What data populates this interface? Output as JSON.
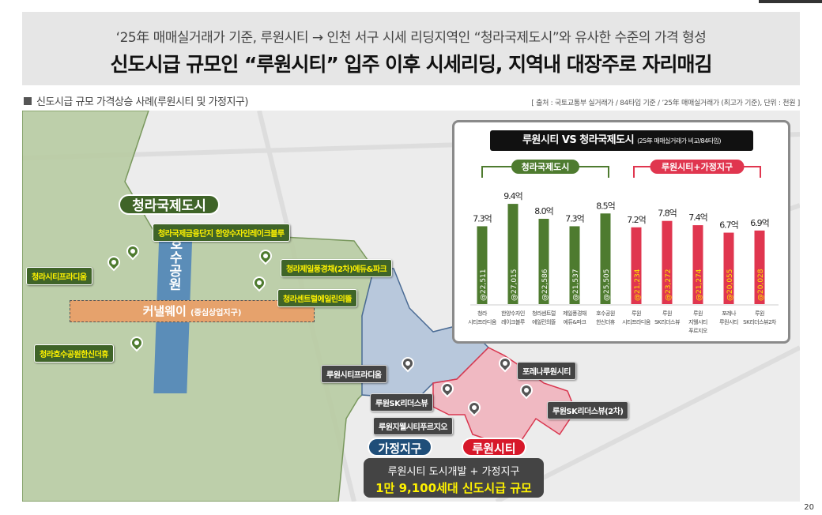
{
  "header": {
    "subtitle": "‘25年 매매실거래가 기준, 루원시티 → 인천 서구 시세 리딩지역인 “청라국제도시”와 유사한 수준의 가격 형성",
    "title": "신도시급 규모인 “루원시티” 입주 이후 시세리딩, 지역내 대장주로 자리매김"
  },
  "section_title": "신도시급 규모 가격상승 사례(루원시티 및 가정지구)",
  "source": "[ 출처 : 국토교통부 실거래가 / 84타입 기준 / ’25年 매매실거래가 (최고가 기준), 단위 : 천원 ]",
  "map": {
    "cheongna_label": "청라국제도시",
    "park_label": "호수공원",
    "canal_label": "커낼웨이",
    "canal_sub": "(중심상업지구)",
    "cheongna_tags": [
      "청라국제금융단지 한양수자인레이크블루",
      "청라시티프라디움",
      "청라제일풍경채(2차)에듀&파크",
      "청라센트럴에일린의뜰",
      "청라호수공원한신더휴"
    ],
    "luone_tags": [
      "루원시티프라디움",
      "포레나루원시티",
      "루원SK리더스뷰",
      "루원SK리더스뷰(2차)",
      "루원지웰시티푸르지오"
    ],
    "gajeong_label": "가정지구",
    "luone_label": "루원시티",
    "info_line1": "루원시티 도시개발 + 가정지구",
    "info_line2": "1만 9,100세대 신도시급 규모"
  },
  "chart_data": {
    "type": "bar",
    "title": "루원시티 VS 청라국제도시",
    "title_sub": "(25年 매매실거래가 비교/84타입)",
    "groups": [
      {
        "name": "청라국제도시",
        "color": "#4e7b2f"
      },
      {
        "name": "루원시티+가정지구",
        "color": "#e0364f"
      }
    ],
    "categories": [
      [
        "청라",
        "시티프라디움"
      ],
      [
        "한양수자인",
        "레이크블루"
      ],
      [
        "청라센트럴",
        "에일린의뜰"
      ],
      [
        "제일풍경채",
        "에듀&파크"
      ],
      [
        "호수공원",
        "한신더휴"
      ],
      [
        "루원",
        "시티프라디움"
      ],
      [
        "루원",
        "SK리더스뷰"
      ],
      [
        "루원",
        "지웰시티",
        "푸르지오"
      ],
      [
        "포레나",
        "루원시티"
      ],
      [
        "루원",
        "SK리더스뷰2차"
      ]
    ],
    "group_index": [
      0,
      0,
      0,
      0,
      0,
      1,
      1,
      1,
      1,
      1
    ],
    "values": [
      7.3,
      9.4,
      8.0,
      7.3,
      8.5,
      7.2,
      7.8,
      7.4,
      6.7,
      6.9
    ],
    "value_labels": [
      "7.3억",
      "9.4억",
      "8.0억",
      "7.3억",
      "8.5억",
      "7.2억",
      "7.8억",
      "7.4억",
      "6.7억",
      "6.9억"
    ],
    "price_labels": [
      "@22,511",
      "@27,015",
      "@22,586",
      "@21,537",
      "@25,505",
      "@21,234",
      "@23,272",
      "@21,274",
      "@20,055",
      "@20,028"
    ],
    "unit": "억"
  },
  "page_number": "20"
}
